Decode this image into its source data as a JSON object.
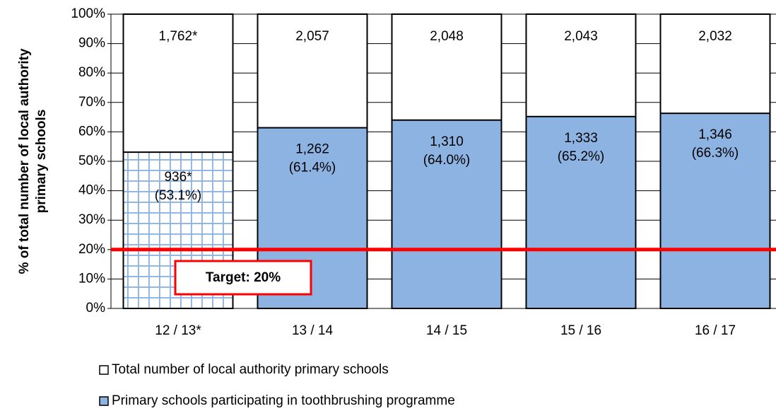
{
  "chart_data": {
    "type": "bar",
    "y_label": [
      "% of total number of local authority",
      "primary schools"
    ],
    "categories": [
      "12 / 13*",
      "13 / 14",
      "14 / 15",
      "15 / 16",
      "16 / 17"
    ],
    "series": [
      {
        "name": "Total number of local authority primary schools",
        "color": "#ffffff",
        "values": [
          100,
          100,
          100,
          100,
          100
        ],
        "counts": [
          1762,
          2057,
          2048,
          2043,
          2032
        ],
        "count_labels": [
          "1,762*",
          "2,057",
          "2,048",
          "2,043",
          "2,032"
        ]
      },
      {
        "name": "Primary schools participating in toothbrushing programme",
        "color": "#8db3e2",
        "values": [
          53.1,
          61.4,
          64.0,
          65.2,
          66.3
        ],
        "value_labels": [
          "(53.1%)",
          "(61.4%)",
          "(64.0%)",
          "(65.2%)",
          "(66.3%)"
        ],
        "counts": [
          936,
          1262,
          1310,
          1333,
          1346
        ],
        "count_labels": [
          "936*",
          "1,262",
          "1,310",
          "1,333",
          "1,346"
        ],
        "hatched": [
          0
        ]
      }
    ],
    "ylim": [
      0,
      100
    ],
    "yticks": [
      {
        "value": 0,
        "label": "0%"
      },
      {
        "value": 10,
        "label": "10%"
      },
      {
        "value": 20,
        "label": "20%"
      },
      {
        "value": 30,
        "label": "30%"
      },
      {
        "value": 40,
        "label": "40%"
      },
      {
        "value": 50,
        "label": "50%"
      },
      {
        "value": 60,
        "label": "60%"
      },
      {
        "value": 70,
        "label": "70%"
      },
      {
        "value": 80,
        "label": "80%"
      },
      {
        "value": 90,
        "label": "90%"
      },
      {
        "value": 100,
        "label": "100%"
      }
    ],
    "grid": true,
    "target": {
      "value": 20,
      "label": "Target: 20%",
      "color": "#ff0000"
    },
    "legend": "bottom"
  }
}
